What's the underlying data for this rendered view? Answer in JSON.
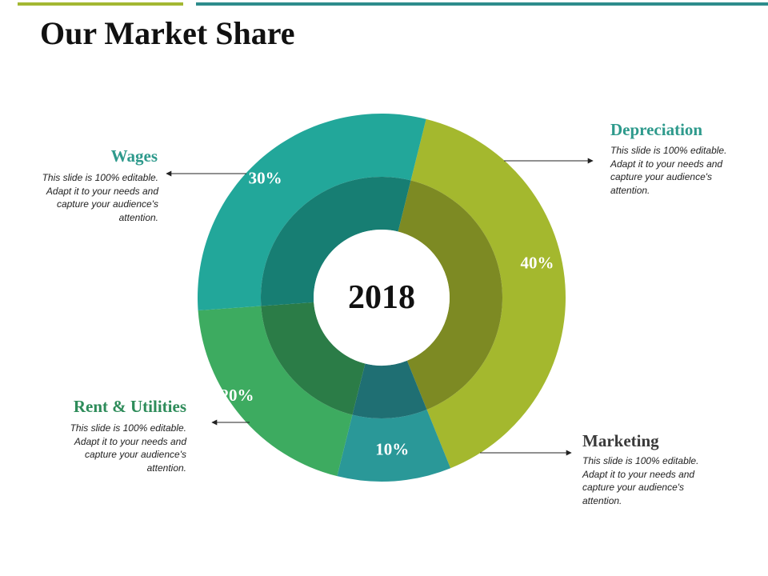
{
  "slide": {
    "title": "Our Market Share",
    "accent_colors": [
      "#a4b832",
      "#2e8c8c"
    ]
  },
  "chart_data": {
    "type": "donut",
    "center_label": "2018",
    "categories": [
      "Depreciation",
      "Marketing",
      "Rent & Utilities",
      "Wages"
    ],
    "values": [
      40,
      10,
      20,
      30
    ],
    "value_labels": [
      "40%",
      "10%",
      "20%",
      "30%"
    ],
    "colors": [
      "#a4b82e",
      "#2a9898",
      "#3dab60",
      "#22a79a"
    ],
    "inner_colors": [
      "#7d8a23",
      "#1f6f73",
      "#2b7c47",
      "#177e73"
    ]
  },
  "annotations": {
    "depreciation": {
      "heading": "Depreciation",
      "text": "This slide is 100% editable. Adapt it to your needs and capture your audience's attention.",
      "color": "#2e9a8c"
    },
    "wages": {
      "heading": "Wages",
      "text": "This slide is 100% editable. Adapt it to your needs and capture your audience's attention.",
      "color": "#2e9a8c"
    },
    "rent": {
      "heading": "Rent & Utilities",
      "text": "This slide is 100% editable. Adapt it to your needs and capture your audience's attention.",
      "color": "#2e8c5a"
    },
    "marketing": {
      "heading": "Marketing",
      "text": "This slide is 100% editable. Adapt it to your needs and capture your audience's attention.",
      "color": "#3a3a3a"
    }
  }
}
